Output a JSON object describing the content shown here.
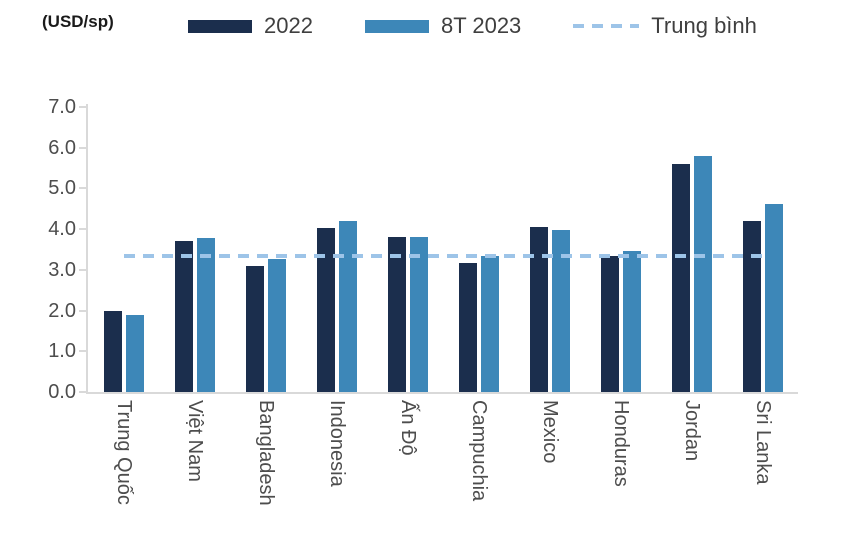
{
  "unit_label": "(USD/sp)",
  "legend": {
    "series1_label": "2022",
    "series2_label": "8T 2023",
    "average_label": "Trung bình"
  },
  "colors": {
    "series1": "#1b2e4d",
    "series2": "#3d87b8",
    "average_line": "#9dc4e8",
    "axis": "#d9d9d9",
    "tick_text": "#4d4d4d",
    "legend_text": "#3f3f3f"
  },
  "chart_data": {
    "type": "bar",
    "title": "",
    "ylabel": "(USD/sp)",
    "xlabel": "",
    "categories": [
      "Trung Quốc",
      "Việt Nam",
      "Bangladesh",
      "Indonesia",
      "Ấn Độ",
      "Campuchia",
      "Mexico",
      "Honduras",
      "Jordan",
      "Sri Lanka"
    ],
    "series": [
      {
        "name": "2022",
        "values": [
          2.0,
          3.72,
          3.1,
          4.03,
          3.8,
          3.18,
          4.05,
          3.35,
          5.6,
          4.2
        ]
      },
      {
        "name": "8T 2023",
        "values": [
          1.89,
          3.78,
          3.28,
          4.2,
          3.82,
          3.35,
          3.97,
          3.47,
          5.8,
          4.62
        ]
      }
    ],
    "average_line": {
      "label": "Trung bình",
      "value": 3.35
    },
    "ylim": [
      0,
      7
    ],
    "ytick_step": 1.0,
    "ytick_labels": [
      "0.0",
      "1.0",
      "2.0",
      "3.0",
      "4.0",
      "5.0",
      "6.0",
      "7.0"
    ],
    "grid": false,
    "legend_position": "top"
  }
}
